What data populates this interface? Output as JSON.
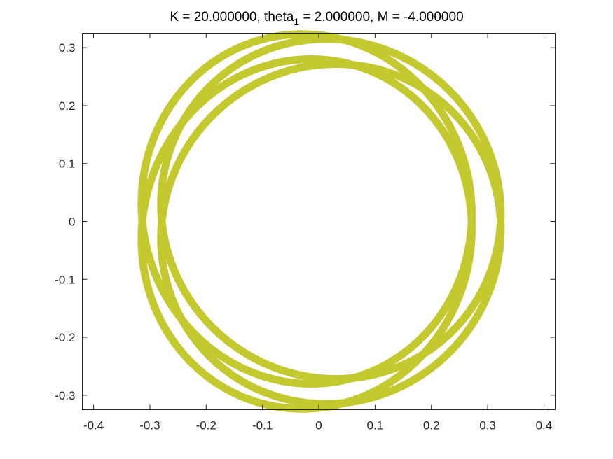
{
  "chart_data": {
    "type": "line",
    "title": {
      "prefix": "K = 20.000000, theta",
      "subscript": "1",
      "suffix": " = 2.000000,  M = -4.000000"
    },
    "xlabel": "",
    "ylabel": "",
    "xlim": [
      -0.42,
      0.42
    ],
    "ylim": [
      -0.325,
      0.325
    ],
    "xticks": [
      -0.4,
      -0.3,
      -0.2,
      -0.1,
      0,
      0.1,
      0.2,
      0.3,
      0.4
    ],
    "xtick_labels": [
      "-0.4",
      "-0.3",
      "-0.2",
      "-0.1",
      "0",
      "0.1",
      "0.2",
      "0.3",
      "0.4"
    ],
    "yticks": [
      -0.3,
      -0.2,
      -0.1,
      0,
      0.1,
      0.2,
      0.3
    ],
    "ytick_labels": [
      "-0.3",
      "-0.2",
      "-0.1",
      "0",
      "0.1",
      "0.2",
      "0.3"
    ],
    "grid": false,
    "legend": "none",
    "line_color": "#c3c92e",
    "series": [
      {
        "parametric": "rotating ellipse loops",
        "center": [
          0,
          0
        ],
        "radius_min": 0.265,
        "radius_max": 0.32,
        "loops": 4
      }
    ]
  }
}
